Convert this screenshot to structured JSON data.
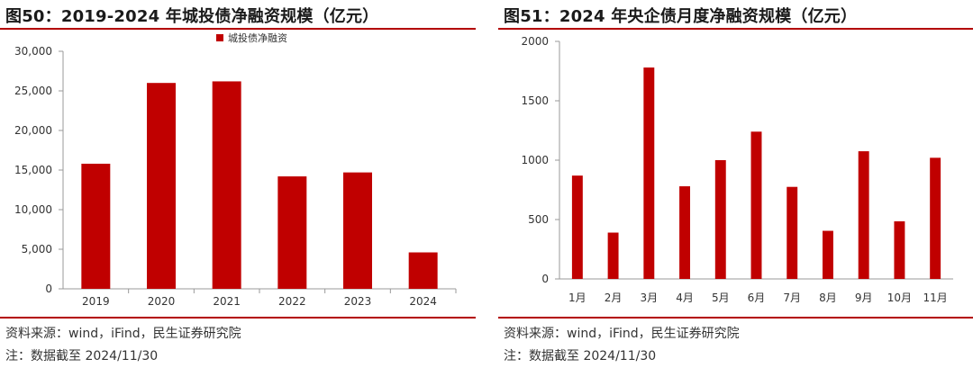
{
  "colors": {
    "accent": "#b30000",
    "bar": "#c00000",
    "axis": "#999999"
  },
  "charts": {
    "left": {
      "title": "图50：2019-2024 年城投债净融资规模（亿元）",
      "source": "资料来源：wind，iFind，民生证券研究院",
      "cutoff": "注：数据截至 2024/11/30"
    },
    "right": {
      "title": "图51：2024 年央企债月度净融资规模（亿元）",
      "source": "资料来源：wind，iFind，民生证券研究院",
      "cutoff": "注：数据截至 2024/11/30"
    }
  },
  "chart_data": [
    {
      "type": "bar",
      "categories": [
        "2019",
        "2020",
        "2021",
        "2022",
        "2023",
        "2024"
      ],
      "series": [
        {
          "name": "城投债净融资",
          "values": [
            15800,
            26000,
            26200,
            14200,
            14700,
            4600
          ]
        }
      ],
      "ylim": [
        0,
        30000
      ],
      "yticks": [
        0,
        5000,
        10000,
        15000,
        20000,
        25000,
        30000
      ],
      "ytick_labels": [
        "0",
        "5,000",
        "10,000",
        "15,000",
        "20,000",
        "25,000",
        "30,000"
      ],
      "legend": "top-center",
      "grid": false
    },
    {
      "type": "bar",
      "categories": [
        "1月",
        "2月",
        "3月",
        "4月",
        "5月",
        "6月",
        "7月",
        "8月",
        "9月",
        "10月",
        "11月"
      ],
      "series": [
        {
          "values": [
            870,
            390,
            1780,
            780,
            1000,
            1240,
            775,
            405,
            1075,
            485,
            1020
          ]
        }
      ],
      "ylim": [
        0,
        2000
      ],
      "yticks": [
        0,
        500,
        1000,
        1500,
        2000
      ],
      "ytick_labels": [
        "0",
        "500",
        "1000",
        "1500",
        "2000"
      ],
      "grid": false
    }
  ]
}
